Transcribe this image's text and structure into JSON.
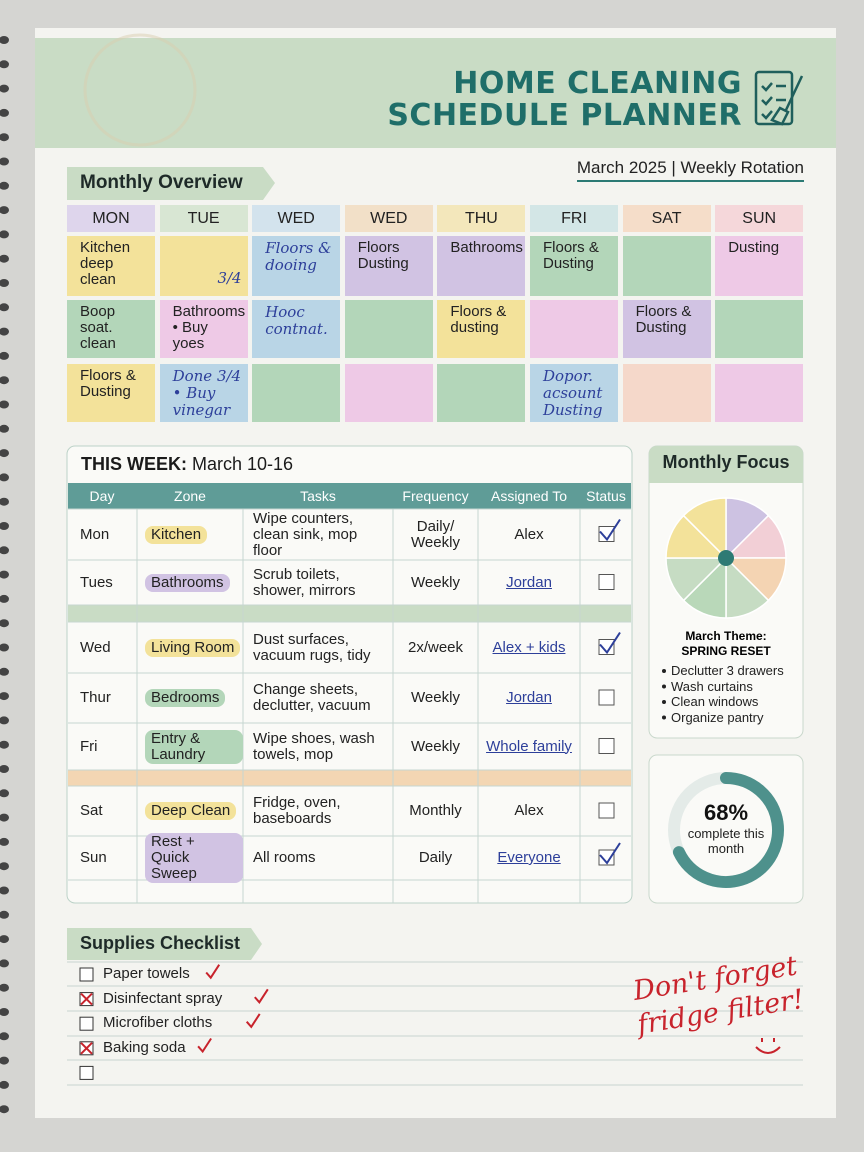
{
  "header": {
    "title_lines": [
      "HOME CLEANING",
      "SCHEDULE PLANNER"
    ],
    "subtitle": "March 2025 | Weekly Rotation"
  },
  "overview": {
    "title": "Monthly Overview",
    "days": [
      {
        "label": "MON",
        "color": "#ded5ec"
      },
      {
        "label": "TUE",
        "color": "#d8e6d3"
      },
      {
        "label": "WED",
        "color": "#d3e3ed"
      },
      {
        "label": "WED",
        "color": "#f2e0c8"
      },
      {
        "label": "THU",
        "color": "#f3e7bb"
      },
      {
        "label": "FRI",
        "color": "#d3e6e6"
      },
      {
        "label": "SAT",
        "color": "#f5ddc9"
      },
      {
        "label": "SUN",
        "color": "#f5d7da"
      }
    ],
    "rows": [
      [
        {
          "text": "Kitchen deep clean",
          "check": true,
          "color": "#f3e29a"
        },
        {
          "text": "3/4",
          "hand": true,
          "color": "#f3e29a"
        },
        {
          "text": "Floors & dooing",
          "check": true,
          "hand": true,
          "color": "#b9d5e6"
        },
        {
          "text": "Floors Dusting",
          "check": true,
          "color": "#d1c3e3"
        },
        {
          "text": "Bathrooms",
          "color": "#d1c3e3"
        },
        {
          "text": "Floors & Dusting",
          "check": true,
          "color": "#b3d6b9"
        },
        {
          "check": true,
          "color": "#b3d6b9"
        },
        {
          "text": "Dusting",
          "check": true,
          "color": "#eec9e6"
        }
      ],
      [
        {
          "text": "Boop soat. clean",
          "check": true,
          "color": "#b3d6b9"
        },
        {
          "text": "Bathrooms\n• Buy yoes",
          "color": "#eec9e6"
        },
        {
          "text": "Hooc contnat.",
          "hand": true,
          "color": "#b9d5e6"
        },
        {
          "color": "#b3d6b9"
        },
        {
          "text": "Floors & dusting",
          "check": true,
          "color": "#f3e29a"
        },
        {
          "check": true,
          "color": "#eec9e6"
        },
        {
          "text": "Floors & Dusting",
          "check": true,
          "color": "#d1c3e3"
        },
        {
          "check": true,
          "color": "#b3d6b9"
        }
      ],
      [
        {
          "text": "Floors & Dusting",
          "check": true,
          "color": "#f3e29a"
        },
        {
          "text": "Done 3/4\n• Buy vinegar",
          "hand": true,
          "color": "#b9d5e6"
        },
        {
          "check": true,
          "color": "#b3d6b9"
        },
        {
          "color": "#eec9e6"
        },
        {
          "check": true,
          "color": "#b3d6b9"
        },
        {
          "text": "Dopor. acsount Dusting",
          "check": true,
          "hand": true,
          "color": "#b9d5e6"
        },
        {
          "color": "#f5d8ca"
        },
        {
          "check": true,
          "color": "#eec9e6"
        }
      ]
    ]
  },
  "week": {
    "title": "THIS WEEK:",
    "dates": "March 10-16",
    "columns": [
      "Day",
      "Zone",
      "Tasks",
      "Frequency",
      "Assigned To",
      "Status"
    ],
    "rows": [
      {
        "day": "Mon",
        "zone": "Kitchen",
        "zone_color": "#f3e29a",
        "tasks": "Wipe counters, clean sink, mop floor",
        "frequency": "Daily/ Weekly",
        "assigned": "Alex",
        "underline": false,
        "done": true
      },
      {
        "day": "Tues",
        "zone": "Bathrooms",
        "zone_color": "#d1c3e3",
        "tasks": "Scrub toilets, shower, mirrors",
        "frequency": "Weekly",
        "assigned": "Jordan",
        "underline": true,
        "done": false
      },
      {
        "day": "Wed",
        "zone": "Living Room",
        "zone_color": "#f3e29a",
        "tasks": "Dust surfaces, vacuum rugs, tidy",
        "frequency": "2x/week",
        "assigned": "Alex + kids",
        "underline": true,
        "done": true
      },
      {
        "day": "Thur",
        "zone": "Bedrooms",
        "zone_color": "#b3d6b9",
        "tasks": "Change sheets, declutter, vacuum",
        "frequency": "Weekly",
        "assigned": "Jordan",
        "underline": true,
        "done": false
      },
      {
        "day": "Fri",
        "zone": "Entry & Laundry",
        "zone_color": "#b3d6b9",
        "tasks": "Wipe shoes, wash towels, mop",
        "frequency": "Weekly",
        "assigned": "Whole family",
        "underline": true,
        "done": false
      },
      {
        "day": "Sat",
        "zone": "Deep Clean",
        "zone_color": "#f3e29a",
        "tasks": "Fridge, oven, baseboards",
        "frequency": "Monthly",
        "assigned": "Alex",
        "underline": false,
        "done": false
      },
      {
        "day": "Sun",
        "zone": "Rest + Quick Sweep",
        "zone_color": "#d1c3e3",
        "tasks": "All rooms",
        "frequency": "Daily",
        "assigned": "Everyone",
        "underline": true,
        "done": true
      }
    ]
  },
  "focus": {
    "title": "Monthly Focus",
    "pie_colors": [
      "#cdc2e2",
      "#f2cfd6",
      "#f4d4b3",
      "#c6dcc3",
      "#b9d8b9",
      "#c6dcc3",
      "#f3e29a",
      "#f3e29a"
    ],
    "theme_label": "March Theme:",
    "theme": "SPRING RESET",
    "items": [
      "Declutter 3 drawers",
      "Wash curtains",
      "Clean windows",
      "Organize pantry"
    ],
    "progress": {
      "value": 68,
      "label": "68%",
      "caption": "complete this month"
    }
  },
  "supplies": {
    "title": "Supplies Checklist",
    "items": [
      {
        "text": "Paper towels",
        "checked": false
      },
      {
        "text": "Disinfectant spray",
        "checked": true
      },
      {
        "text": "Microfiber cloths",
        "checked": false
      },
      {
        "text": "Baking soda",
        "checked": true
      },
      {
        "checked": false
      }
    ],
    "note": "Don't forget fridge filter!"
  }
}
